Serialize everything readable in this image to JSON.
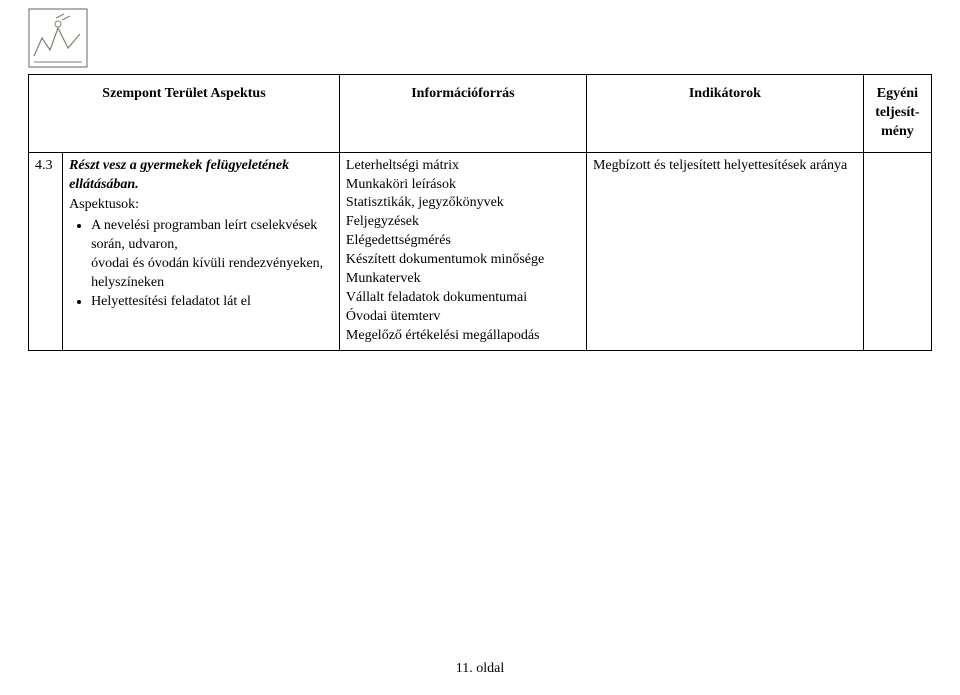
{
  "header": {
    "col_aspect": "Szempont Terület Aspektus",
    "col_info": "Információforrás",
    "col_ind": "Indikátorok",
    "col_egy": "Egyéni teljesít-mény"
  },
  "row": {
    "num": "4.3",
    "aspect_title": "Részt vesz a gyermekek felügyeletének ellátásában.",
    "aspect_label": "Aspektusok:",
    "bullets": [
      "A nevelési programban leírt cselekvések során, udvaron,\nóvodai és óvodán kívüli rendezvényeken, helyszíneken",
      "Helyettesítési feladatot lát el"
    ],
    "info_lines": [
      "Leterheltségi mátrix",
      "Munkaköri leírások",
      "Statisztikák, jegyzőkönyvek",
      "Feljegyzések",
      "Elégedettségmérés",
      "Készített dokumentumok minősége",
      "Munkatervek",
      "Vállalt feladatok dokumentumai",
      "Óvodai ütemterv",
      "Megelőző értékelési megállapodás"
    ],
    "indicator": "Megbízott és teljesített helyettesítések aránya",
    "egy": ""
  },
  "footer": "11. oldal",
  "colors": {
    "border": "#000000",
    "background": "#ffffff",
    "text": "#000000",
    "logo_stroke": "#7a8470"
  }
}
